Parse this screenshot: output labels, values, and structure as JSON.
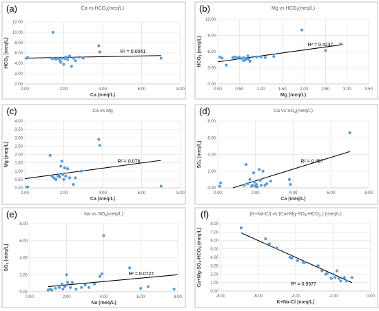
{
  "chart_data": [
    {
      "type": "scatter",
      "panel_label": "(a)",
      "title": "Ca vs HCO3(meq/L)",
      "title_parts": [
        "Ca vs HCO",
        "3",
        "(meq/L)"
      ],
      "xlabel": "Ca (meq/L)",
      "ylabel": "HCO3 (meq/L)",
      "ylabel_parts": [
        "HCO",
        "3",
        " (meq/L)"
      ],
      "xlim": [
        0,
        8
      ],
      "ylim": [
        0,
        12
      ],
      "xticks": [
        0,
        2,
        4,
        6,
        8
      ],
      "yticks": [
        0,
        2,
        4,
        6,
        8,
        10,
        12
      ],
      "xtick_labels": [
        "0.00",
        "2.00",
        "4.00",
        "6.00",
        "8.00"
      ],
      "ytick_labels": [
        "0.00",
        "2.00",
        "4.00",
        "6.00",
        "8.00",
        "10.00",
        "12.00"
      ],
      "grid": true,
      "trendline": {
        "x": [
          0,
          7
        ],
        "y": [
          5.0,
          5.5
        ]
      },
      "r2_text": "R² = 0.0041",
      "x": [
        0.1,
        0.15,
        1.4,
        1.5,
        1.6,
        1.7,
        1.8,
        1.85,
        1.9,
        2.0,
        2.05,
        2.1,
        2.2,
        2.3,
        2.4,
        2.5,
        2.6,
        2.8,
        3.0,
        3.8,
        3.85,
        7.0,
        1.45
      ],
      "y": [
        5.0,
        5.1,
        4.9,
        5.0,
        4.8,
        5.0,
        4.6,
        4.2,
        5.0,
        3.8,
        4.9,
        5.2,
        4.7,
        5.4,
        3.4,
        5.0,
        4.5,
        5.2,
        5.0,
        7.4,
        6.2,
        5.0,
        10.0
      ]
    },
    {
      "type": "scatter",
      "panel_label": "(b)",
      "title": "Mg vs HCO3(meq/L)",
      "title_parts": [
        "Mg vs HCO",
        "3",
        "(meq/L)"
      ],
      "xlabel": "Mg (meq/L)",
      "ylabel": "HCO3 (meq/L)",
      "ylabel_parts": [
        "HCO",
        "3",
        " (meq/L)"
      ],
      "xlim": [
        0,
        3.5
      ],
      "ylim": [
        0,
        12
      ],
      "xticks": [
        0,
        0.5,
        1,
        1.5,
        2,
        2.5,
        3,
        3.5
      ],
      "yticks": [
        0,
        3,
        6,
        9,
        12
      ],
      "xtick_labels": [
        "0.00",
        "0.50",
        "1.00",
        "1.50",
        "2.00",
        "2.50",
        "3.00",
        "3.50"
      ],
      "ytick_labels": [
        "0.00",
        "3.00",
        "6.00",
        "9.00",
        "12.00"
      ],
      "grid": true,
      "trendline": {
        "x": [
          0,
          2.9
        ],
        "y": [
          4.1,
          7.3
        ]
      },
      "r2_text": "R² = 0.4237",
      "x": [
        0.05,
        0.1,
        0.2,
        0.35,
        0.4,
        0.45,
        0.5,
        0.55,
        0.6,
        0.65,
        0.7,
        0.72,
        0.75,
        0.8,
        0.9,
        1.0,
        1.1,
        1.3,
        1.95,
        2.5,
        2.85,
        0.6
      ],
      "y": [
        5.0,
        4.8,
        3.5,
        4.9,
        5.0,
        4.8,
        5.0,
        4.7,
        4.9,
        4.5,
        5.2,
        4.6,
        4.2,
        5.0,
        5.0,
        5.0,
        4.9,
        5.1,
        10.0,
        6.2,
        7.4,
        4.3
      ]
    },
    {
      "type": "scatter",
      "panel_label": "(c)",
      "title": "Ca vs Mg",
      "xlabel": "Ca (meq/L)",
      "ylabel": "Mg (meq/L)",
      "xlim": [
        0,
        8
      ],
      "ylim": [
        0,
        4
      ],
      "xticks": [
        0,
        2,
        4,
        6,
        8
      ],
      "yticks": [
        0,
        0.5,
        1,
        1.5,
        2,
        2.5,
        3,
        3.5,
        4
      ],
      "xtick_labels": [
        "0.00",
        "2.00",
        "4.00",
        "6.00",
        "8.00"
      ],
      "ytick_labels": [
        "0.00",
        "0.50",
        "1.00",
        "1.50",
        "2.00",
        "2.50",
        "3.00",
        "3.50",
        "4.00"
      ],
      "grid": true,
      "trendline": {
        "x": [
          0,
          7
        ],
        "y": [
          0.55,
          1.65
        ]
      },
      "r2_text": "R² = 0.078",
      "x": [
        0.1,
        0.15,
        1.4,
        1.5,
        1.6,
        1.7,
        1.75,
        1.8,
        1.85,
        1.9,
        1.95,
        2.0,
        2.05,
        2.1,
        2.2,
        2.3,
        2.5,
        2.6,
        2.9,
        3.8,
        3.85,
        7.0,
        1.3
      ],
      "y": [
        0.05,
        0.05,
        0.7,
        0.6,
        0.5,
        0.7,
        0.8,
        0.65,
        1.3,
        1.6,
        0.8,
        0.5,
        1.2,
        0.7,
        1.15,
        0.6,
        0.2,
        0.6,
        1.0,
        2.9,
        2.55,
        0.1,
        1.95
      ]
    },
    {
      "type": "scatter",
      "panel_label": "(d)",
      "title": "Ca vs SO4(meq/L)",
      "title_parts": [
        "Ca vs SO",
        "4",
        "(meq/L)"
      ],
      "xlabel": "Ca (meq/L)",
      "ylabel": "SO4 (meq/L)",
      "ylabel_parts": [
        "SO",
        "4",
        " (meq/L)"
      ],
      "xlim": [
        0,
        8
      ],
      "ylim": [
        0,
        8
      ],
      "xticks": [
        0,
        2,
        4,
        6,
        8
      ],
      "yticks": [
        0,
        2,
        4,
        6,
        8
      ],
      "xtick_labels": [
        "0.00",
        "2.00",
        "4.00",
        "6.00",
        "8.00"
      ],
      "ytick_labels": [
        "0.00",
        "2.00",
        "4.00",
        "6.00",
        "8.00"
      ],
      "grid": true,
      "trendline": {
        "x": [
          0.8,
          7.0
        ],
        "y": [
          0.0,
          4.35
        ]
      },
      "r2_text": "R² = 0.457",
      "x": [
        0.1,
        0.15,
        1.4,
        1.5,
        1.6,
        1.7,
        1.8,
        1.85,
        1.9,
        2.0,
        2.05,
        2.1,
        2.2,
        2.3,
        2.4,
        2.5,
        2.6,
        2.8,
        3.8,
        3.85,
        7.0,
        1.95,
        2.25
      ],
      "y": [
        0.2,
        0.6,
        0.3,
        2.8,
        0.5,
        1.0,
        0.2,
        0.3,
        1.8,
        0.2,
        0.4,
        0.1,
        2.2,
        0.3,
        2.0,
        0.3,
        0.5,
        0.8,
        1.0,
        0.4,
        6.6,
        0.7,
        0.9
      ]
    },
    {
      "type": "scatter",
      "panel_label": "(e)",
      "title": "Na vs SO4(meq/L)",
      "title_parts": [
        "Na vs SO",
        "4",
        "(meq/L)"
      ],
      "xlabel": "Na (meq/L)",
      "ylabel": "SO4 (meq/L)",
      "ylabel_parts": [
        "SO",
        "4",
        " (meq/L)"
      ],
      "xlim": [
        0,
        8
      ],
      "ylim": [
        0,
        8
      ],
      "xticks": [
        0,
        2,
        4,
        6,
        8
      ],
      "yticks": [
        0,
        2,
        4,
        6,
        8
      ],
      "xtick_labels": [
        "0.00",
        "2.00",
        "4.00",
        "6.00",
        "8.00"
      ],
      "ytick_labels": [
        "0.00",
        "2.00",
        "4.00",
        "6.00",
        "8.00"
      ],
      "grid": true,
      "trendline": {
        "x": [
          1.0,
          8.0
        ],
        "y": [
          0.6,
          2.0
        ]
      },
      "r2_text": "R² = 0.0727",
      "x": [
        1.0,
        1.1,
        1.2,
        1.4,
        1.6,
        1.75,
        1.8,
        1.9,
        2.0,
        2.05,
        2.2,
        2.3,
        2.5,
        2.8,
        3.0,
        3.2,
        3.5,
        3.8,
        3.9,
        4.0,
        5.4,
        6.0,
        6.4,
        7.8
      ],
      "y": [
        0.2,
        0.3,
        0.2,
        0.4,
        0.5,
        0.9,
        0.3,
        0.6,
        2.0,
        1.1,
        0.5,
        1.1,
        0.3,
        0.5,
        0.8,
        0.5,
        0.9,
        1.8,
        2.1,
        6.6,
        2.8,
        0.4,
        0.6,
        0.3
      ]
    },
    {
      "type": "scatter",
      "panel_label": "(f)",
      "title": "(K+Na-Cl) vs (Ca+Mg-SO4-HCO3) (meq/L)",
      "title_parts": [
        "(K+Na-Cl) vs (Ca+Mg-SO",
        "4",
        "-HCO",
        "3",
        " )  (meq/L)"
      ],
      "xlabel": "K+Na-Cl (meq/L)",
      "ylabel": "Ca+Mg-SO4-HCO3 (meq/L)",
      "ylabel_parts": [
        "Ca+Mg-SO",
        "4",
        "-HCO",
        "3",
        " (meq/L)"
      ],
      "xlim": [
        -8,
        0
      ],
      "ylim": [
        0,
        8
      ],
      "xticks": [
        -8,
        -6,
        -4,
        -2,
        0
      ],
      "yticks": [
        0,
        1,
        2,
        3,
        4,
        5,
        6,
        7,
        8
      ],
      "xtick_labels": [
        "-8.00",
        "-6.00",
        "-4.00",
        "-2.00",
        "0.00"
      ],
      "ytick_labels": [
        "0.00",
        "1.00",
        "2.00",
        "3.00",
        "4.00",
        "5.00",
        "6.00",
        "7.00",
        "8.00"
      ],
      "grid": true,
      "trendline": {
        "x": [
          -6.9,
          -1.0
        ],
        "y": [
          6.9,
          1.0
        ]
      },
      "r2_text": "R² = 0.9377",
      "x": [
        -6.9,
        -5.6,
        -5.4,
        -5.0,
        -4.3,
        -4.2,
        -3.9,
        -3.6,
        -3.5,
        -2.8,
        -2.6,
        -2.4,
        -2.3,
        -2.1,
        -2.0,
        -1.9,
        -1.8,
        -1.7,
        -1.6,
        -1.4,
        -1.3,
        -1.0
      ],
      "y": [
        7.5,
        6.2,
        5.6,
        5.1,
        4.0,
        3.9,
        3.6,
        3.4,
        3.4,
        3.0,
        2.4,
        2.0,
        2.1,
        1.5,
        2.0,
        1.6,
        2.4,
        1.5,
        1.2,
        1.6,
        1.2,
        1.6
      ]
    }
  ]
}
